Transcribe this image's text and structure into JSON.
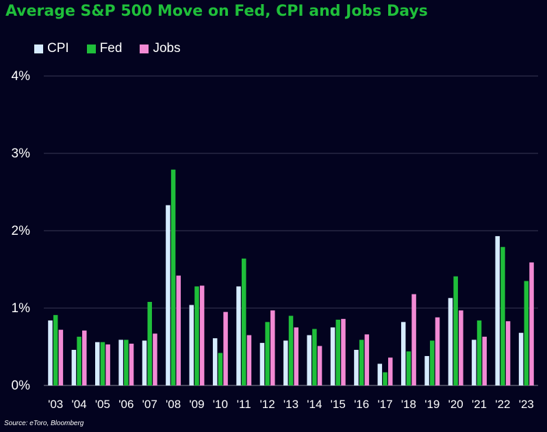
{
  "colors": {
    "background": "#03031f",
    "title": "#1fbf3a",
    "text": "#ffffff",
    "grid": "#3a3a55"
  },
  "source": "Source: eToro, Bloomberg",
  "chart_data": {
    "type": "bar",
    "title": "Average S&P 500 Move on Fed, CPI and Jobs Days",
    "xlabel": "",
    "ylabel": "",
    "ylim": [
      0,
      4
    ],
    "y_ticks": [
      "0%",
      "1%",
      "2%",
      "3%",
      "4%"
    ],
    "y_tick_values": [
      0,
      1,
      2,
      3,
      4
    ],
    "grid": "horizontal",
    "legend_placement": "top-left",
    "categories": [
      "'03",
      "'04",
      "'05",
      "'06",
      "'07",
      "'08",
      "'09",
      "'10",
      "'11",
      "'12",
      "'13",
      "'14",
      "'15",
      "'16",
      "'17",
      "'18",
      "'19",
      "'20",
      "'21",
      "'22",
      "'23"
    ],
    "series": [
      {
        "name": "CPI",
        "color": "#d6ecff",
        "values": [
          0.84,
          0.46,
          0.56,
          0.59,
          0.58,
          2.33,
          1.04,
          0.61,
          1.28,
          0.55,
          0.58,
          0.65,
          0.75,
          0.46,
          0.28,
          0.82,
          0.38,
          1.13,
          0.59,
          1.93,
          0.68
        ]
      },
      {
        "name": "Fed",
        "color": "#1fbf3a",
        "values": [
          0.91,
          0.63,
          0.56,
          0.59,
          1.08,
          2.79,
          1.28,
          0.42,
          1.64,
          0.82,
          0.9,
          0.73,
          0.85,
          0.59,
          0.17,
          0.44,
          0.58,
          1.41,
          0.84,
          1.79,
          1.35
        ]
      },
      {
        "name": "Jobs",
        "color": "#f28ad4",
        "values": [
          0.72,
          0.71,
          0.53,
          0.54,
          0.67,
          1.42,
          1.29,
          0.95,
          0.65,
          0.97,
          0.75,
          0.51,
          0.86,
          0.66,
          0.36,
          1.18,
          0.88,
          0.97,
          0.63,
          0.83,
          1.59
        ]
      }
    ]
  }
}
